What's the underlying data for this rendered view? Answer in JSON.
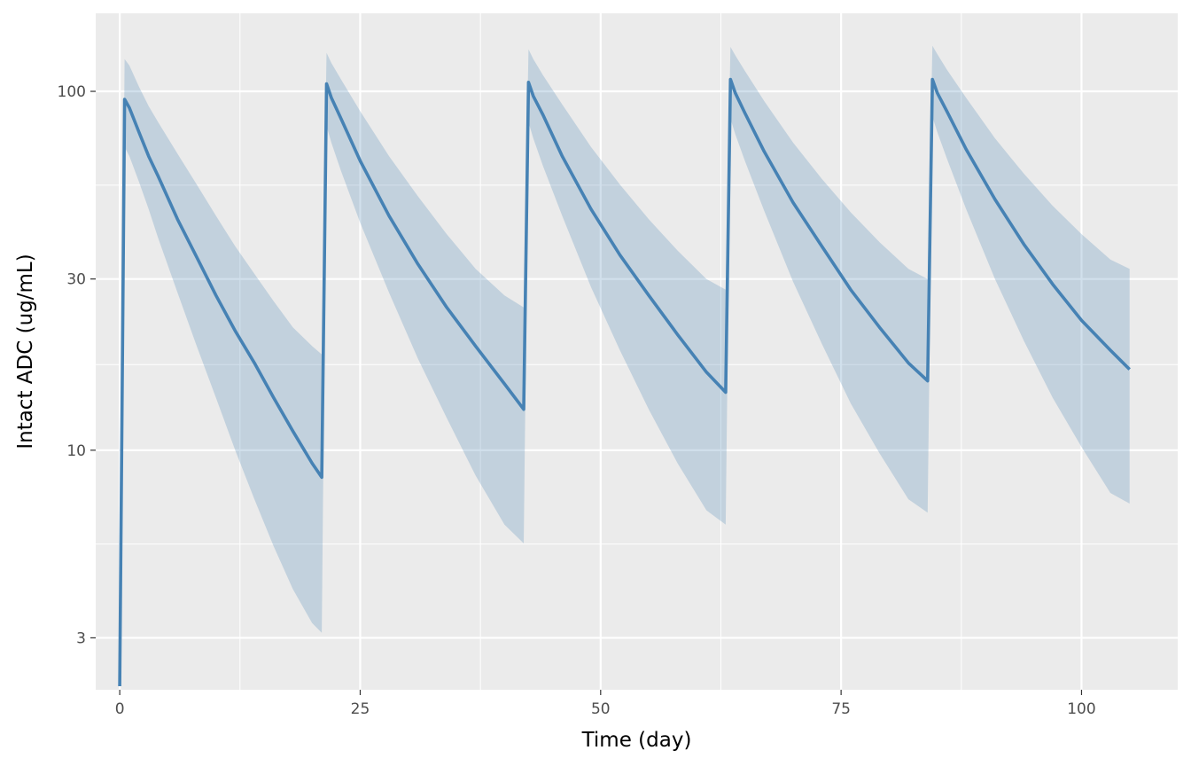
{
  "chart_data": {
    "type": "line",
    "title": "",
    "xlabel": "Time (day)",
    "ylabel": "Intact ADC (ug/mL)",
    "xlim": [
      -2.5,
      110
    ],
    "ylim": [
      2.15,
      165
    ],
    "y_scale": "log",
    "x_ticks": [
      0,
      25,
      50,
      75,
      100
    ],
    "x_tick_labels": [
      "0",
      "25",
      "50",
      "75",
      "100"
    ],
    "y_ticks": [
      3,
      10,
      30,
      100
    ],
    "y_tick_labels": [
      "3",
      "10",
      "30",
      "100"
    ],
    "grid": true,
    "legend": "none",
    "colors": {
      "panel": "#ebebeb",
      "grid": "#ffffff",
      "line": "#4682b4",
      "ribbon": "#4682b4"
    },
    "series": [
      {
        "x": [
          0,
          0.5,
          1,
          2,
          3,
          4,
          6,
          8,
          10,
          12,
          14,
          16,
          18,
          20,
          21,
          21.5,
          22,
          23,
          25,
          28,
          31,
          34,
          37,
          40,
          42,
          42.5,
          43,
          44,
          46,
          49,
          52,
          55,
          58,
          61,
          63,
          63.5,
          64,
          65,
          67,
          70,
          73,
          76,
          79,
          82,
          84,
          84.5,
          85,
          86,
          88,
          91,
          94,
          97,
          100,
          103,
          105
        ],
        "y": [
          2.2,
          95,
          90,
          77,
          66,
          58,
          44,
          34.5,
          27,
          21.5,
          17.5,
          14,
          11.3,
          9.2,
          8.4,
          105,
          96,
          84,
          64,
          45,
          33,
          25,
          19.5,
          15.3,
          13,
          106,
          97,
          86,
          66,
          47,
          35,
          27,
          21,
          16.5,
          14.5,
          108,
          99,
          87,
          68,
          49,
          37,
          28,
          22,
          17.5,
          15.6,
          108,
          99,
          88,
          69,
          50,
          37.5,
          29,
          23,
          19,
          16.8
        ],
        "lower": [
          2.2,
          70,
          66,
          56,
          47,
          39,
          27.5,
          19.5,
          14,
          10,
          7.3,
          5.4,
          4.1,
          3.3,
          3.1,
          80,
          72,
          60,
          43,
          27.5,
          18,
          12.3,
          8.5,
          6.2,
          5.5,
          82,
          74,
          62,
          45,
          28.5,
          19,
          13,
          9.2,
          6.8,
          6.2,
          84,
          76,
          64,
          46.5,
          29.5,
          19.8,
          13.5,
          9.8,
          7.3,
          6.7,
          85,
          77,
          65,
          47,
          30,
          20.2,
          14,
          10.2,
          7.6,
          7.1
        ],
        "upper": [
          2.2,
          123,
          118,
          103,
          91,
          82,
          67,
          55,
          45,
          37,
          31,
          26,
          22,
          19.5,
          18.5,
          128,
          120,
          108,
          88,
          66,
          51,
          40,
          32,
          27,
          25,
          131,
          123,
          111,
          92,
          70,
          55,
          44,
          36,
          30,
          28,
          133,
          126,
          114,
          94,
          72,
          57,
          46,
          38,
          32,
          30,
          134,
          127,
          115,
          96,
          74,
          59,
          48,
          40,
          34,
          32
        ]
      }
    ]
  }
}
